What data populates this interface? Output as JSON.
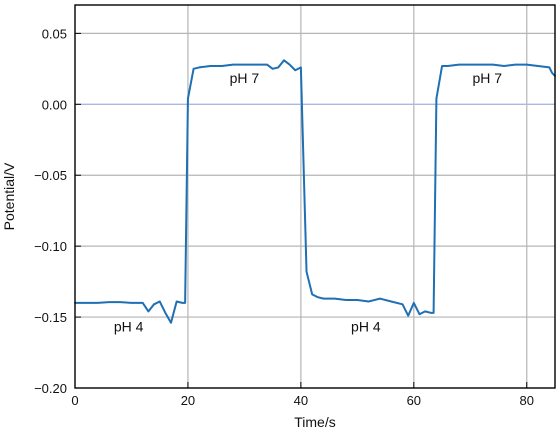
{
  "chart_data": {
    "type": "line",
    "xlabel": "Time/s",
    "ylabel": "Potential/V",
    "xlim": [
      0,
      85
    ],
    "ylim": [
      -0.2,
      0.07
    ],
    "x_ticks": [
      0,
      20,
      40,
      60,
      80
    ],
    "x_tick_labels": [
      "0",
      "20",
      "40",
      "60",
      "80"
    ],
    "y_ticks": [
      0.05,
      0.0,
      -0.05,
      -0.1,
      -0.15,
      -0.2
    ],
    "y_tick_labels": [
      "0.05",
      "0.00",
      "−0.05",
      "−0.10",
      "−0.15",
      "−0.20"
    ],
    "grid": true,
    "zero_line_color": "#a9b8e6",
    "grid_color": "#b5b5b5",
    "series_color": "#1f6fb4",
    "series": [
      {
        "x": [
          0,
          2,
          4,
          6,
          8,
          10,
          12,
          13,
          14,
          15,
          16,
          17,
          18,
          19,
          19.5,
          20,
          21,
          22,
          24,
          26,
          28,
          30,
          32,
          34,
          35,
          36,
          37,
          38,
          39,
          40,
          41,
          42,
          43,
          44,
          46,
          48,
          50,
          52,
          53,
          54,
          56,
          58,
          59,
          60,
          61,
          62,
          63,
          63.5,
          64,
          65,
          66,
          68,
          70,
          72,
          74,
          76,
          78,
          80,
          82,
          84,
          84.5,
          85
        ],
        "y": [
          -0.14,
          -0.14,
          -0.14,
          -0.1395,
          -0.1395,
          -0.14,
          -0.14,
          -0.146,
          -0.141,
          -0.139,
          -0.147,
          -0.154,
          -0.139,
          -0.14,
          -0.14,
          0.004,
          0.025,
          0.026,
          0.027,
          0.027,
          0.028,
          0.028,
          0.028,
          0.028,
          0.025,
          0.026,
          0.031,
          0.028,
          0.024,
          0.026,
          -0.118,
          -0.134,
          -0.136,
          -0.137,
          -0.137,
          -0.138,
          -0.138,
          -0.139,
          -0.138,
          -0.137,
          -0.139,
          -0.141,
          -0.149,
          -0.14,
          -0.148,
          -0.146,
          -0.147,
          -0.147,
          0.004,
          0.027,
          0.027,
          0.028,
          0.028,
          0.028,
          0.028,
          0.027,
          0.028,
          0.028,
          0.027,
          0.026,
          0.022,
          0.02
        ]
      }
    ],
    "annotations": [
      {
        "text": "pH 4",
        "x": 9.5,
        "y": -0.16
      },
      {
        "text": "pH 7",
        "x": 30,
        "y": 0.015
      },
      {
        "text": "pH 4",
        "x": 51.5,
        "y": -0.16
      },
      {
        "text": "pH 7",
        "x": 73,
        "y": 0.015
      }
    ]
  }
}
